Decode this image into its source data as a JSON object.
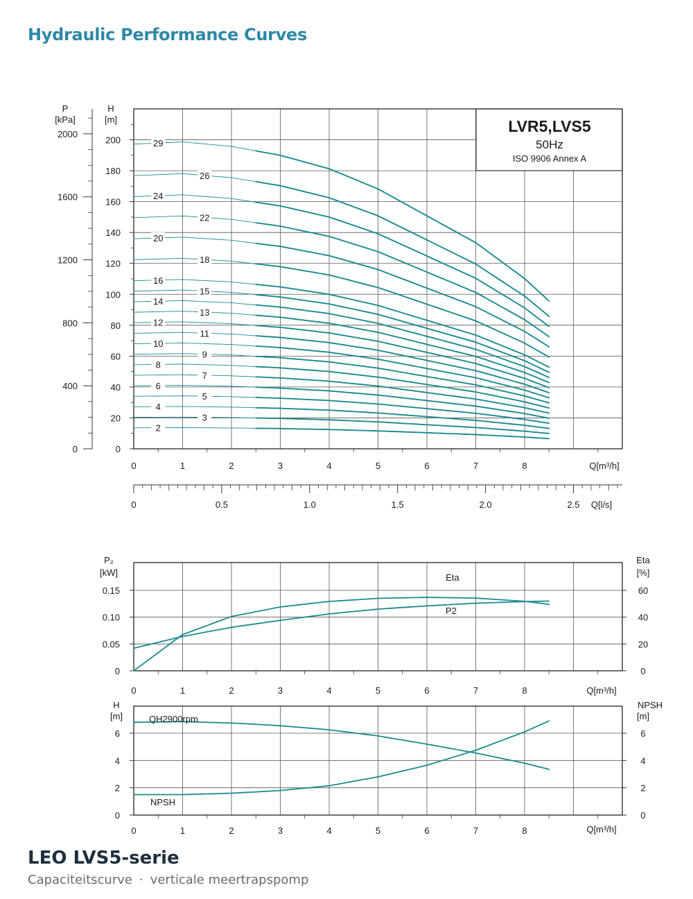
{
  "page": {
    "title": "Hydraulic Performance Curves",
    "footer_title": "LEO LVS5-serie",
    "footer_sub_left": "Capaciteitscurve",
    "footer_sub_sep": "·",
    "footer_sub_right": "verticale meertrapspomp"
  },
  "colors": {
    "curve": "#1a8a90",
    "title": "#2e88a6",
    "footer": "#1d2f3c",
    "grid": "#333333"
  },
  "chart_data": [
    {
      "type": "line",
      "id": "qh",
      "legend_title": "LVR5,LVS5",
      "legend_freq": "50Hz",
      "legend_std": "ISO 9906 Annex A",
      "y_label_p": "P",
      "y_unit_p": "[kPa]",
      "y_label_h": "H",
      "y_unit_h": "[m]",
      "x_label": "Q[m³/h]",
      "x2_label": "Q[l/s]",
      "xlim": [
        0,
        10
      ],
      "ylim": [
        0,
        220
      ],
      "grid": true,
      "x_ticks": [
        0,
        1,
        2,
        3,
        4,
        5,
        6,
        7,
        8
      ],
      "y_ticks": [
        0,
        20,
        40,
        60,
        80,
        100,
        120,
        140,
        160,
        180,
        200
      ],
      "p_ticks": [
        0,
        400,
        800,
        1200,
        1600,
        2000
      ],
      "x2_ticks": [
        "0",
        "0.5",
        "1.0",
        "1.5",
        "2.0",
        "2.5"
      ],
      "single_stage_curve": {
        "x": [
          0,
          1,
          2,
          3,
          4,
          5,
          6,
          7,
          8,
          8.5
        ],
        "y": [
          6.8,
          6.85,
          6.75,
          6.55,
          6.25,
          5.8,
          5.2,
          4.6,
          3.8,
          3.3
        ]
      },
      "stages": [
        2,
        3,
        4,
        5,
        6,
        7,
        8,
        9,
        10,
        11,
        12,
        13,
        14,
        15,
        16,
        18,
        20,
        22,
        24,
        26,
        29
      ],
      "label_x": [
        0.5,
        1.45,
        0.5,
        1.45,
        0.5,
        1.45,
        0.5,
        1.45,
        0.5,
        1.45,
        0.5,
        1.45,
        0.5,
        1.45,
        0.5,
        1.45,
        0.5,
        1.45,
        0.5,
        1.45,
        0.5
      ]
    },
    {
      "type": "line",
      "id": "p2eta",
      "y_label_left": "P₂",
      "y_unit_left": "[kW]",
      "y_label_right": "Eta",
      "y_unit_right": "[%]",
      "x_label": "Q[m³/h]",
      "xlim": [
        0,
        10
      ],
      "ylim": [
        0,
        0.15
      ],
      "ylim_right": [
        0,
        60
      ],
      "x_ticks": [
        0,
        1,
        2,
        3,
        4,
        5,
        6,
        7,
        8
      ],
      "y_ticks": [
        "0",
        "0.05",
        "0.10",
        "0.15"
      ],
      "y_ticks_right": [
        "0",
        "20",
        "40",
        "60"
      ],
      "grid": true,
      "series": [
        {
          "name": "Eta",
          "axis": "right",
          "x": [
            0,
            1,
            2,
            3,
            4,
            5,
            6,
            7,
            8,
            8.5
          ],
          "y": [
            0,
            27,
            40.5,
            47.6,
            51.7,
            54,
            54.8,
            54.2,
            51.8,
            49.5
          ]
        },
        {
          "name": "P2",
          "axis": "left",
          "x": [
            0,
            1,
            2,
            3,
            4,
            5,
            6,
            7,
            8,
            8.5
          ],
          "y": [
            0.042,
            0.064,
            0.081,
            0.094,
            0.106,
            0.115,
            0.121,
            0.126,
            0.129,
            0.13
          ]
        }
      ]
    },
    {
      "type": "line",
      "id": "hnpsh",
      "y_label_left": "H",
      "y_unit_left": "[m]",
      "y_label_right": "NPSH",
      "y_unit_right": "[m]",
      "x_label": "Q[m³/h]",
      "xlim": [
        0,
        10
      ],
      "ylim": [
        0,
        8
      ],
      "x_ticks": [
        0,
        1,
        2,
        3,
        4,
        5,
        6,
        7,
        8
      ],
      "y_ticks": [
        0,
        2,
        4,
        6
      ],
      "grid": true,
      "series": [
        {
          "name": "QH2900rpm",
          "x": [
            0,
            1,
            2,
            3,
            4,
            5,
            6,
            7,
            8,
            8.5
          ],
          "y": [
            6.8,
            6.85,
            6.75,
            6.55,
            6.25,
            5.8,
            5.2,
            4.55,
            3.8,
            3.35
          ]
        },
        {
          "name": "NPSH",
          "x": [
            0,
            1,
            2,
            3,
            4,
            5,
            6,
            7,
            8,
            8.5
          ],
          "y": [
            1.5,
            1.5,
            1.6,
            1.8,
            2.15,
            2.8,
            3.65,
            4.75,
            6.1,
            6.9
          ]
        }
      ]
    }
  ]
}
